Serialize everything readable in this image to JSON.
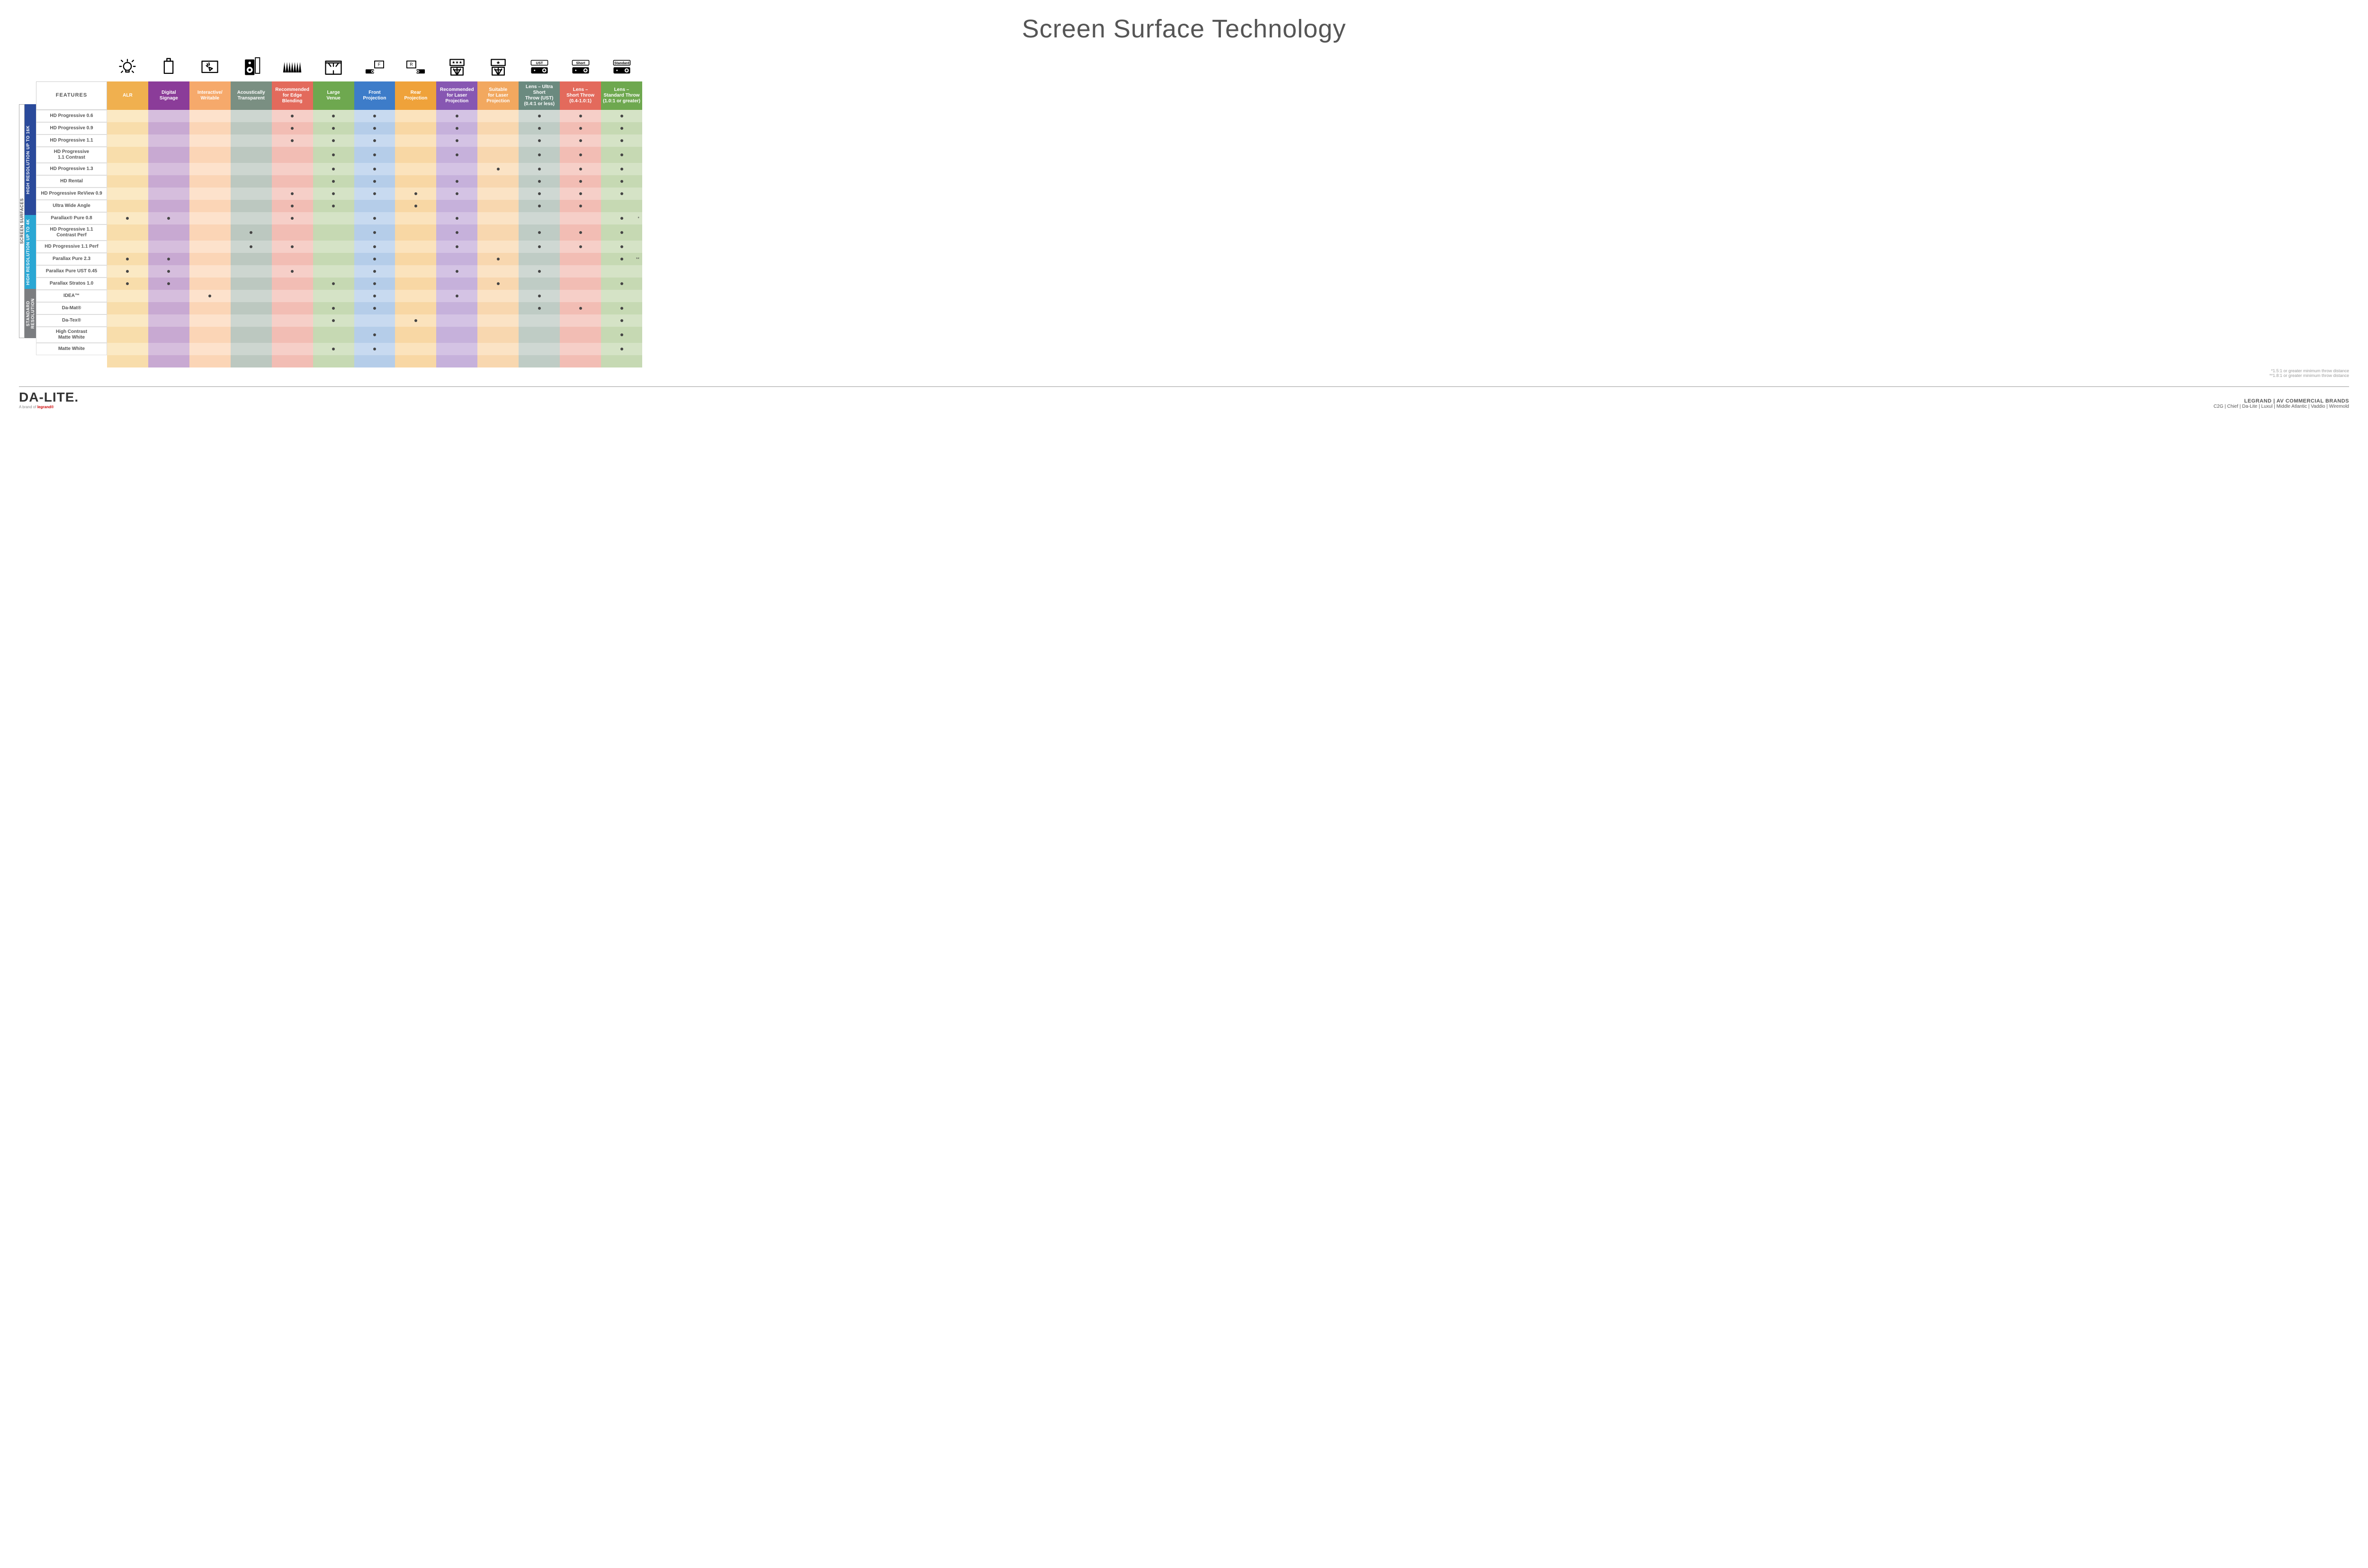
{
  "title": "Screen Surface Technology",
  "featuresHeader": "FEATURES",
  "verticalOuter": "SCREEN SURFACES",
  "columns": [
    {
      "key": "alr",
      "label": "ALR",
      "color": "#f0b04f",
      "darkText": false,
      "icon": "bulb"
    },
    {
      "key": "ds",
      "label": "Digital\nSignage",
      "color": "#8b3c99",
      "darkText": false,
      "icon": "signage"
    },
    {
      "key": "iw",
      "label": "Interactive/\nWritable",
      "color": "#f6a96b",
      "darkText": false,
      "icon": "touch"
    },
    {
      "key": "at",
      "label": "Acoustically\nTransparent",
      "color": "#7a8f82",
      "darkText": false,
      "icon": "speaker"
    },
    {
      "key": "eb",
      "label": "Recommended\nfor Edge\nBlending",
      "color": "#e36a5c",
      "darkText": false,
      "icon": "blend"
    },
    {
      "key": "lv",
      "label": "Large\nVenue",
      "color": "#6ea84f",
      "darkText": false,
      "icon": "venue"
    },
    {
      "key": "fp",
      "label": "Front\nProjection",
      "color": "#3d7cc9",
      "darkText": false,
      "icon": "front"
    },
    {
      "key": "rp",
      "label": "Rear\nProjection",
      "color": "#efa23a",
      "darkText": false,
      "icon": "rear"
    },
    {
      "key": "rlp",
      "label": "Recommended\nfor Laser\nProjection",
      "color": "#8757b2",
      "darkText": false,
      "icon": "laserRec"
    },
    {
      "key": "slp",
      "label": "Suitable\nfor Laser\nProjection",
      "color": "#f2a85f",
      "darkText": false,
      "icon": "laserSuit"
    },
    {
      "key": "ust",
      "label": "Lens – Ultra Short\nThrow (UST)\n(0.4:1 or less)",
      "color": "#6b8a7f",
      "darkText": false,
      "icon": "projUST"
    },
    {
      "key": "st",
      "label": "Lens –\nShort Throw\n(0.4-1.0:1)",
      "color": "#e36a5c",
      "darkText": false,
      "icon": "projShort"
    },
    {
      "key": "std",
      "label": "Lens –\nStandard Throw\n(1.0:1 or greater)",
      "color": "#6ea84f",
      "darkText": false,
      "icon": "projStd"
    }
  ],
  "tints": {
    "alr": [
      "#fbe9c4",
      "#f8ddab"
    ],
    "ds": [
      "#d6bedd",
      "#c8a9d2"
    ],
    "iw": [
      "#fde2cc",
      "#fbd5b6"
    ],
    "at": [
      "#cdd6d0",
      "#bcc8c0"
    ],
    "eb": [
      "#f6cfc8",
      "#f2bdb4"
    ],
    "lv": [
      "#d5e3c6",
      "#c6d9b3"
    ],
    "fp": [
      "#c8daf0",
      "#b5cde9"
    ],
    "rp": [
      "#fbe3bd",
      "#f8d7a4"
    ],
    "rlp": [
      "#d4c3e4",
      "#c6b1db"
    ],
    "slp": [
      "#fbe3c5",
      "#f8d7af"
    ],
    "ust": [
      "#cfd8d3",
      "#bfccC5"
    ],
    "st": [
      "#f6cfc8",
      "#f2bdb4"
    ],
    "std": [
      "#d5e3c6",
      "#c6d9b3"
    ]
  },
  "groups": [
    {
      "label": "HIGH RESOLUTION UP TO 16K",
      "color": "#2a4a9b",
      "rows": [
        {
          "name": "HD Progressive 0.6",
          "marks": {
            "eb": "•",
            "lv": "•",
            "fp": "•",
            "rlp": "•",
            "ust": "•",
            "st": "•",
            "std": "•"
          }
        },
        {
          "name": "HD Progressive 0.9",
          "marks": {
            "eb": "•",
            "lv": "•",
            "fp": "•",
            "rlp": "•",
            "ust": "•",
            "st": "•",
            "std": "•"
          }
        },
        {
          "name": "HD Progressive 1.1",
          "marks": {
            "eb": "•",
            "lv": "•",
            "fp": "•",
            "rlp": "•",
            "ust": "•",
            "st": "•",
            "std": "•"
          }
        },
        {
          "name": "HD Progressive\n1.1 Contrast",
          "marks": {
            "lv": "•",
            "fp": "•",
            "rlp": "•",
            "ust": "•",
            "st": "•",
            "std": "•"
          }
        },
        {
          "name": "HD Progressive 1.3",
          "marks": {
            "lv": "•",
            "fp": "•",
            "slp": "•",
            "ust": "•",
            "st": "•",
            "std": "•"
          }
        },
        {
          "name": "HD Rental",
          "marks": {
            "lv": "•",
            "fp": "•",
            "rlp": "•",
            "ust": "•",
            "st": "•",
            "std": "•"
          }
        },
        {
          "name": "HD Progressive ReView 0.9",
          "marks": {
            "eb": "•",
            "lv": "•",
            "fp": "•",
            "rp": "•",
            "rlp": "•",
            "ust": "•",
            "st": "•",
            "std": "•"
          }
        },
        {
          "name": "Ultra Wide Angle",
          "marks": {
            "eb": "•",
            "lv": "•",
            "rp": "•",
            "ust": "•",
            "st": "•"
          }
        },
        {
          "name": "Parallax® Pure 0.8",
          "marks": {
            "alr": "•",
            "ds": "•",
            "eb": "•",
            "fp": "•",
            "rlp": "•",
            "std": "•"
          },
          "note": {
            "std": "*"
          }
        }
      ]
    },
    {
      "label": "HIGH RESOLUTION UP TO 4K",
      "color": "#2aa7d4",
      "rows": [
        {
          "name": "HD Progressive 1.1\nContrast Perf",
          "marks": {
            "at": "•",
            "fp": "•",
            "rlp": "•",
            "ust": "•",
            "st": "•",
            "std": "•"
          }
        },
        {
          "name": "HD Progressive 1.1 Perf",
          "marks": {
            "at": "•",
            "eb": "•",
            "fp": "•",
            "rlp": "•",
            "ust": "•",
            "st": "•",
            "std": "•"
          }
        },
        {
          "name": "Parallax Pure 2.3",
          "marks": {
            "alr": "•",
            "ds": "•",
            "fp": "•",
            "slp": "•",
            "std": "•"
          },
          "note": {
            "std": "**"
          }
        },
        {
          "name": "Parallax Pure UST 0.45",
          "marks": {
            "alr": "•",
            "ds": "•",
            "eb": "•",
            "fp": "•",
            "rlp": "•",
            "ust": "•"
          }
        },
        {
          "name": "Parallax Stratos 1.0",
          "marks": {
            "alr": "•",
            "ds": "•",
            "lv": "•",
            "fp": "•",
            "slp": "•",
            "std": "•"
          }
        },
        {
          "name": "IDEA™",
          "marks": {
            "iw": "•",
            "fp": "•",
            "rlp": "•",
            "ust": "•"
          }
        }
      ]
    },
    {
      "label": "STANDARD\nRESOLUTION",
      "color": "#7b7d80",
      "rows": [
        {
          "name": "Da-Mat®",
          "marks": {
            "lv": "•",
            "fp": "•",
            "ust": "•",
            "st": "•",
            "std": "•"
          }
        },
        {
          "name": "Da-Tex®",
          "marks": {
            "lv": "•",
            "rp": "•",
            "std": "•"
          }
        },
        {
          "name": "High Contrast\nMatte White",
          "marks": {
            "fp": "•",
            "std": "•"
          }
        },
        {
          "name": "Matte White",
          "marks": {
            "lv": "•",
            "fp": "•",
            "std": "•"
          }
        }
      ]
    }
  ],
  "footnotes": [
    "*1.5:1 or greater minimum throw distance",
    "**1.8:1 or greater minimum throw distance"
  ],
  "footer": {
    "logo": "DA-LITE.",
    "logoSub": "A brand of ",
    "logoSubBrand": "legrand®",
    "heading": "LEGRAND | AV COMMERCIAL BRANDS",
    "brands": "C2G  |  Chief  |  Da-Lite  |  Luxul  |  Middle Atlantic  |  Vaddio  |  Wiremold"
  }
}
